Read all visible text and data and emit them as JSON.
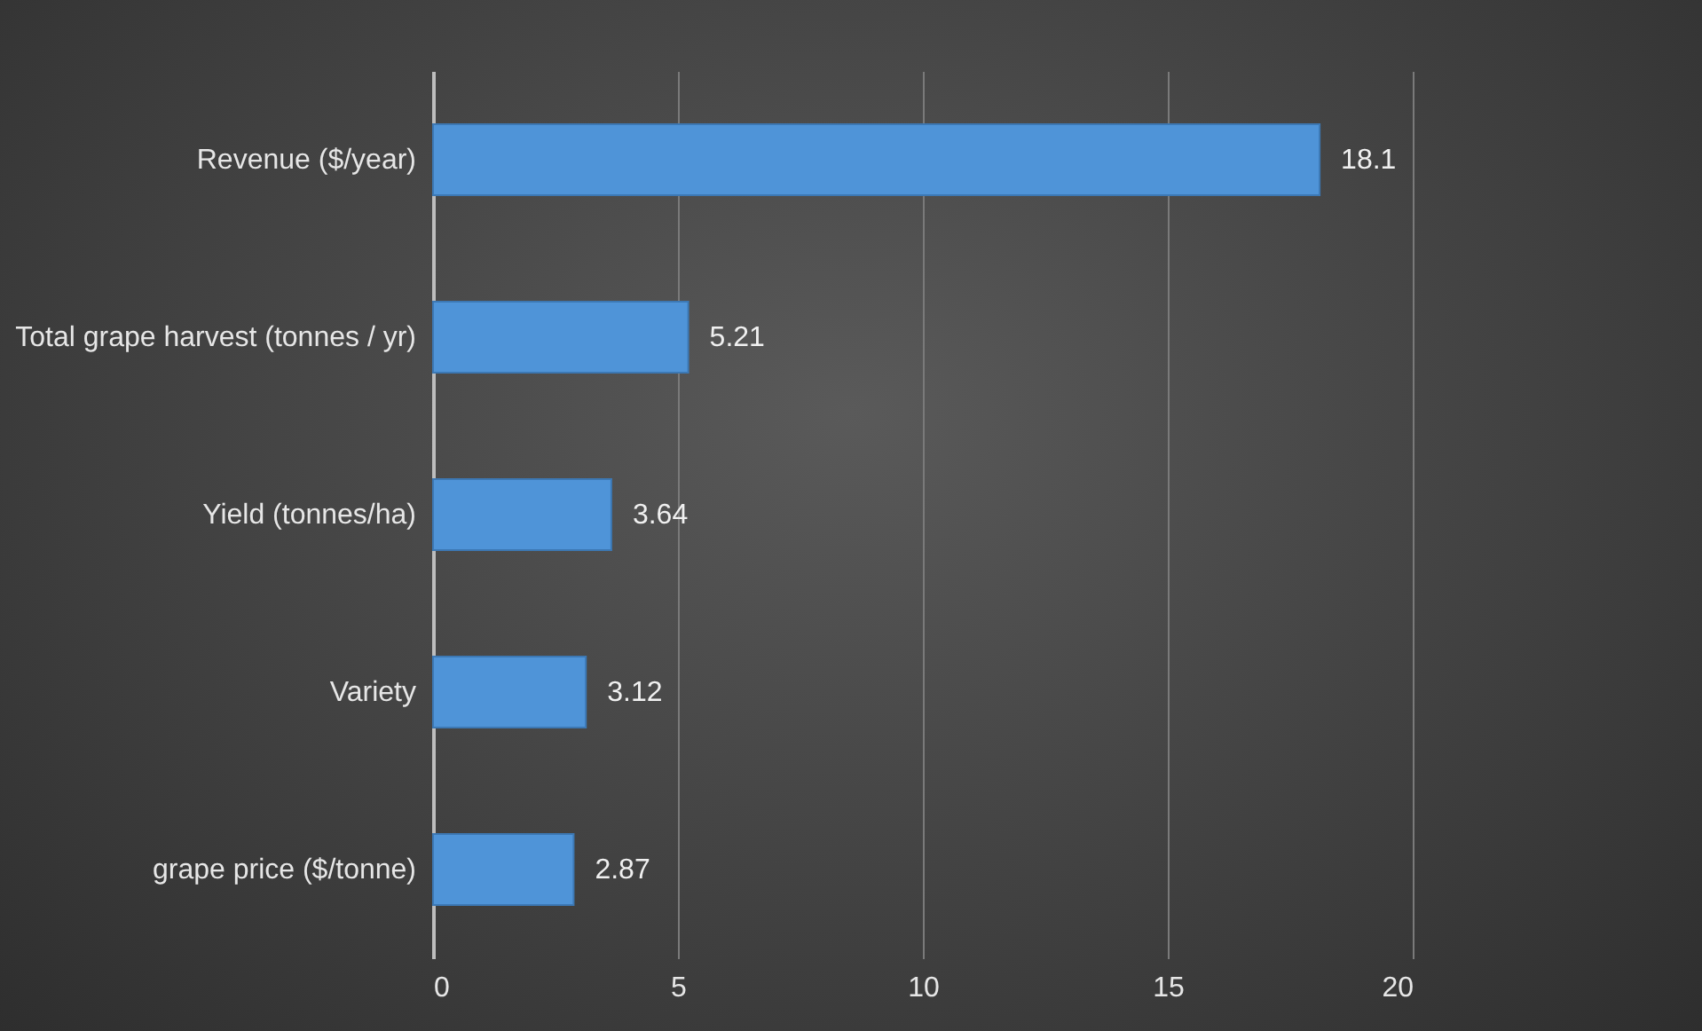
{
  "chart_data": {
    "type": "bar",
    "orientation": "horizontal",
    "categories": [
      "Revenue ($/year)",
      "Total grape harvest (tonnes / yr)",
      "Yield (tonnes/ha)",
      "Variety",
      "grape price ($/tonne)"
    ],
    "values": [
      18.1,
      5.21,
      3.64,
      3.12,
      2.87
    ],
    "color": "#4f94d8",
    "xlim": [
      0,
      20
    ],
    "xticks": [
      0,
      5,
      10,
      15,
      20
    ],
    "grid": "x",
    "data_labels": true
  }
}
